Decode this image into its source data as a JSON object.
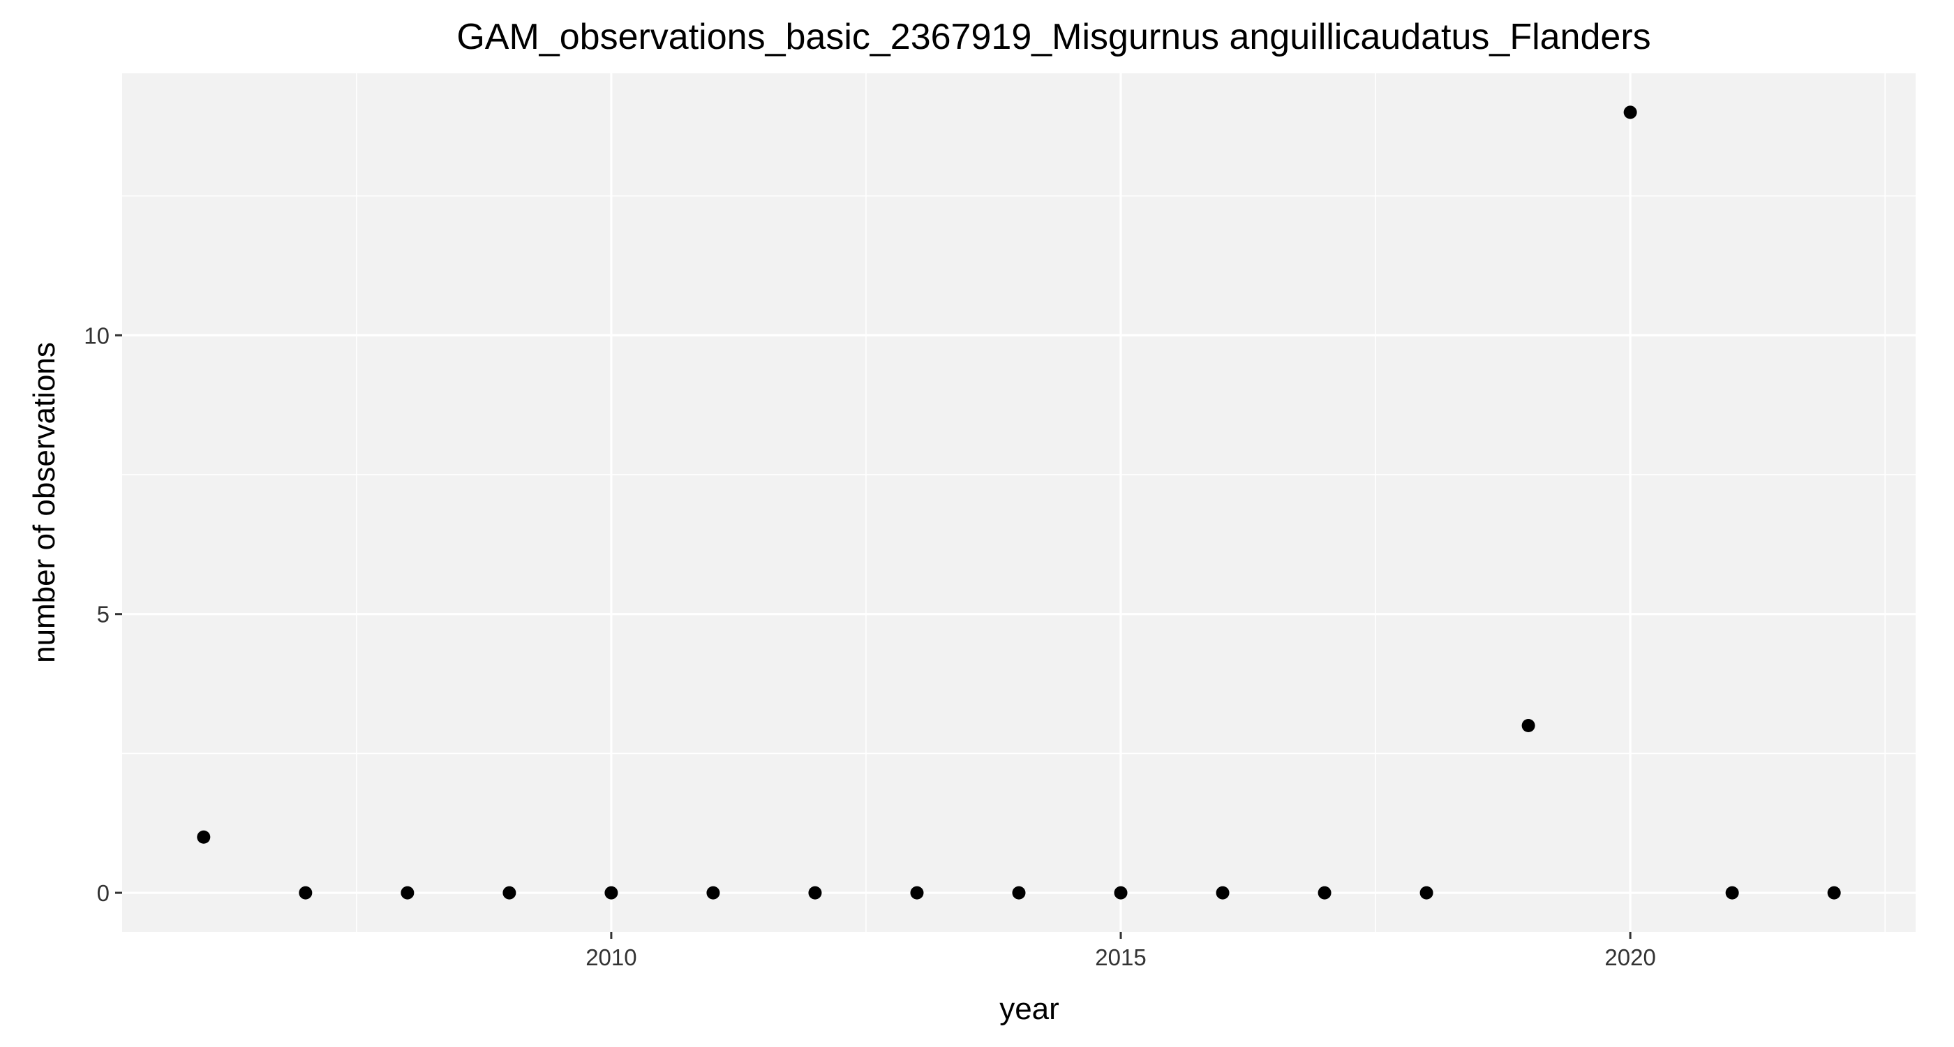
{
  "chart_data": {
    "type": "scatter",
    "title": "GAM_observations_basic_2367919_Misgurnus anguillicaudatus_Flanders",
    "xlabel": "year",
    "ylabel": "number of observations",
    "x": [
      2006,
      2007,
      2008,
      2009,
      2010,
      2011,
      2012,
      2013,
      2014,
      2015,
      2016,
      2017,
      2018,
      2019,
      2020,
      2021,
      2022
    ],
    "y": [
      1,
      0,
      0,
      0,
      0,
      0,
      0,
      0,
      0,
      0,
      0,
      0,
      0,
      3,
      14,
      0,
      0
    ],
    "xlim": [
      2005.2,
      2022.8
    ],
    "ylim": [
      -0.7,
      14.7
    ],
    "x_ticks": [
      2010,
      2015,
      2020
    ],
    "x_tick_labels": [
      "2010",
      "2015",
      "2020"
    ],
    "x_minor_ticks": [
      2007.5,
      2012.5,
      2017.5,
      2022.5
    ],
    "y_ticks": [
      0,
      5,
      10
    ],
    "y_tick_labels": [
      "0",
      "5",
      "10"
    ],
    "y_minor_ticks": [
      2.5,
      7.5,
      12.5
    ],
    "grid": true,
    "legend": "none",
    "colors": {
      "panel": "#f2f2f2",
      "grid": "#ffffff",
      "point": "#000000",
      "tick": "#333333"
    }
  }
}
